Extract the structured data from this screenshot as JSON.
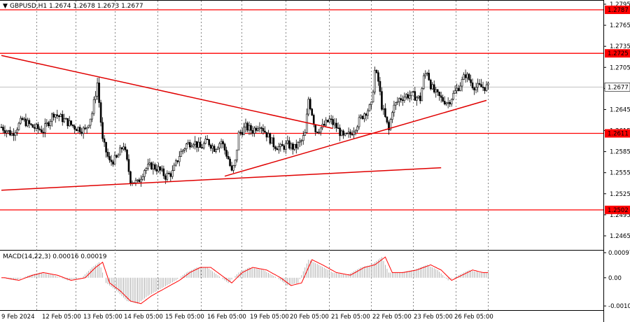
{
  "symbol_header": {
    "collapse_glyph": "▼",
    "text": "GBPUSD,H1  1.2674 1.2678 1.2673 1.2677"
  },
  "macd_header": "MACD(14,22,3) 0.00016 0.00019",
  "colors": {
    "background": "#ffffff",
    "candle": "#000000",
    "level_line": "#ff0000",
    "trend_line": "#e00000",
    "macd_signal": "#ff0000",
    "macd_hist": "#a0a0a0",
    "grid": "#555555",
    "current_price_line": "#c0c0c0"
  },
  "price_axis": {
    "ticks": [
      "1.2795",
      "1.2765",
      "1.2735",
      "1.2705",
      "1.2675",
      "1.2645",
      "1.2615",
      "1.2585",
      "1.2555",
      "1.2525",
      "1.2495",
      "1.2465"
    ],
    "tick_values": [
      1.2795,
      1.2765,
      1.2735,
      1.2705,
      1.2675,
      1.2645,
      1.2615,
      1.2585,
      1.2555,
      1.2525,
      1.2495,
      1.2465
    ],
    "range": [
      1.2445,
      1.28
    ]
  },
  "levels": [
    {
      "value": 1.2787,
      "label": "1.2787"
    },
    {
      "value": 1.2725,
      "label": "1.2725"
    },
    {
      "value": 1.2611,
      "label": "1.2611"
    },
    {
      "value": 1.2502,
      "label": "1.2502"
    }
  ],
  "current_price": {
    "value": 1.2677,
    "label": "1.2677"
  },
  "time_axis": {
    "labels": [
      "9 Feb 2024",
      "12 Feb 05:00",
      "13 Feb 05:00",
      "14 Feb 05:00",
      "15 Feb 05:00",
      "16 Feb 05:00",
      "19 Feb 05:00",
      "20 Feb 05:00",
      "21 Feb 05:00",
      "22 Feb 05:00",
      "23 Feb 05:00",
      "26 Feb 05:00"
    ]
  },
  "macd_axis": {
    "ticks": [
      "0.00097",
      "0.00",
      "-0.00109"
    ],
    "tick_values": [
      0.00097,
      0.0,
      -0.00109
    ],
    "range": [
      -0.00125,
      0.00105
    ]
  },
  "chart_data": {
    "type": "candlestick",
    "timeframe": "H1",
    "close_path": [
      [
        0,
        1.262
      ],
      [
        6,
        1.261
      ],
      [
        12,
        1.263
      ],
      [
        18,
        1.262
      ],
      [
        24,
        1.2615
      ],
      [
        30,
        1.264
      ],
      [
        36,
        1.263
      ],
      [
        42,
        1.262
      ],
      [
        48,
        1.2615
      ],
      [
        52,
        1.264
      ],
      [
        55,
        1.2683
      ],
      [
        58,
        1.26
      ],
      [
        62,
        1.257
      ],
      [
        66,
        1.2575
      ],
      [
        70,
        1.2595
      ],
      [
        74,
        1.2545
      ],
      [
        78,
        1.254
      ],
      [
        82,
        1.256
      ],
      [
        86,
        1.2565
      ],
      [
        90,
        1.256
      ],
      [
        94,
        1.255
      ],
      [
        98,
        1.2555
      ],
      [
        102,
        1.258
      ],
      [
        106,
        1.2595
      ],
      [
        110,
        1.26
      ],
      [
        114,
        1.259
      ],
      [
        118,
        1.26
      ],
      [
        122,
        1.259
      ],
      [
        126,
        1.26
      ],
      [
        130,
        1.2575
      ],
      [
        132,
        1.2555
      ],
      [
        134,
        1.257
      ],
      [
        136,
        1.261
      ],
      [
        140,
        1.262
      ],
      [
        144,
        1.2615
      ],
      [
        148,
        1.2625
      ],
      [
        152,
        1.261
      ],
      [
        156,
        1.2595
      ],
      [
        160,
        1.259
      ],
      [
        164,
        1.2595
      ],
      [
        168,
        1.259
      ],
      [
        172,
        1.26
      ],
      [
        174,
        1.261
      ],
      [
        176,
        1.266
      ],
      [
        178,
        1.264
      ],
      [
        180,
        1.2615
      ],
      [
        184,
        1.262
      ],
      [
        188,
        1.263
      ],
      [
        192,
        1.262
      ],
      [
        196,
        1.2605
      ],
      [
        200,
        1.261
      ],
      [
        204,
        1.2625
      ],
      [
        208,
        1.264
      ],
      [
        212,
        1.265
      ],
      [
        214,
        1.27
      ],
      [
        216,
        1.2685
      ],
      [
        218,
        1.265
      ],
      [
        222,
        1.2615
      ],
      [
        224,
        1.2645
      ],
      [
        228,
        1.266
      ],
      [
        232,
        1.2665
      ],
      [
        236,
        1.2665
      ],
      [
        240,
        1.266
      ],
      [
        242,
        1.269
      ],
      [
        244,
        1.27
      ],
      [
        246,
        1.268
      ],
      [
        248,
        1.267
      ],
      [
        252,
        1.266
      ],
      [
        256,
        1.2655
      ],
      [
        260,
        1.267
      ],
      [
        264,
        1.2685
      ],
      [
        266,
        1.2695
      ],
      [
        268,
        1.2688
      ],
      [
        270,
        1.268
      ],
      [
        272,
        1.2677
      ]
    ],
    "trend_lines": [
      {
        "name": "descending resistance",
        "p1": [
          0,
          1.2722
        ],
        "p2": [
          190,
          1.2618
        ]
      },
      {
        "name": "rising support",
        "p1": [
          128,
          1.255
        ],
        "p2": [
          278,
          1.2658
        ]
      },
      {
        "name": "lower support",
        "p1": [
          0,
          1.253
        ],
        "p2": [
          252,
          1.2562
        ]
      }
    ],
    "macd": {
      "params": "14,22,3",
      "value": 0.00016,
      "signal": 0.00019,
      "hist_path": [
        [
          0,
          0.0
        ],
        [
          8,
          -0.0001
        ],
        [
          16,
          0.0001
        ],
        [
          22,
          0.0002
        ],
        [
          30,
          0.0001
        ],
        [
          38,
          -0.0001
        ],
        [
          46,
          0.0
        ],
        [
          52,
          0.0004
        ],
        [
          56,
          0.0006
        ],
        [
          60,
          -0.0002
        ],
        [
          66,
          -0.0005
        ],
        [
          72,
          -0.0009
        ],
        [
          78,
          -0.001
        ],
        [
          84,
          -0.0007
        ],
        [
          92,
          -0.0004
        ],
        [
          100,
          -0.0001
        ],
        [
          106,
          0.0002
        ],
        [
          112,
          0.0004
        ],
        [
          118,
          0.0004
        ],
        [
          124,
          0.0001
        ],
        [
          130,
          -0.0002
        ],
        [
          136,
          0.0002
        ],
        [
          142,
          0.0004
        ],
        [
          150,
          0.0003
        ],
        [
          158,
          0.0
        ],
        [
          164,
          -0.0003
        ],
        [
          170,
          -0.0002
        ],
        [
          176,
          0.0007
        ],
        [
          182,
          0.0005
        ],
        [
          190,
          0.0002
        ],
        [
          198,
          0.0001
        ],
        [
          206,
          0.0004
        ],
        [
          212,
          0.0005
        ],
        [
          218,
          0.0008
        ],
        [
          222,
          0.0002
        ],
        [
          228,
          0.0002
        ],
        [
          236,
          0.0003
        ],
        [
          244,
          0.0005
        ],
        [
          250,
          0.0003
        ],
        [
          256,
          -0.0001
        ],
        [
          262,
          0.0001
        ],
        [
          268,
          0.0003
        ],
        [
          274,
          0.0002
        ]
      ]
    }
  }
}
